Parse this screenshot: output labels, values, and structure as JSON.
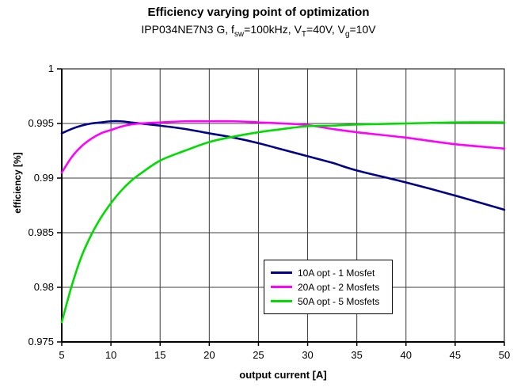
{
  "header": {
    "title": "Efficiency varying point of optimization",
    "subtitle_parts": {
      "p1": "IPP034NE7N3 G, f",
      "s1": "sw",
      "p2": "=100kHz, V",
      "s2": "T",
      "p3": "=40V, V",
      "s3": "g",
      "p4": "=10V"
    }
  },
  "chart_data": {
    "type": "line",
    "title": "Efficiency varying point of optimization",
    "subtitle": "IPP034NE7N3 G, fsw=100kHz, VT=40V, Vg=10V",
    "xlabel": "output current [A]",
    "ylabel": "efficiency [%]",
    "xlim": [
      5,
      50
    ],
    "ylim": [
      0.975,
      1.0
    ],
    "grid": true,
    "legend_position": "lower-center-right",
    "x_ticks": [
      {
        "v": 5,
        "label": "5"
      },
      {
        "v": 10,
        "label": "10"
      },
      {
        "v": 15,
        "label": "15"
      },
      {
        "v": 20,
        "label": "20"
      },
      {
        "v": 25,
        "label": "25"
      },
      {
        "v": 30,
        "label": "30"
      },
      {
        "v": 35,
        "label": "35"
      },
      {
        "v": 40,
        "label": "40"
      },
      {
        "v": 45,
        "label": "45"
      },
      {
        "v": 50,
        "label": "50"
      }
    ],
    "y_ticks": [
      {
        "v": 1.0,
        "label": "1"
      },
      {
        "v": 0.995,
        "label": "0.995"
      },
      {
        "v": 0.99,
        "label": "0.99"
      },
      {
        "v": 0.985,
        "label": "0.985"
      },
      {
        "v": 0.98,
        "label": "0.98"
      },
      {
        "v": 0.975,
        "label": "0.975"
      }
    ],
    "x": [
      5,
      6,
      7,
      8,
      9,
      10,
      11,
      12,
      13,
      15,
      17.5,
      20,
      22.5,
      25,
      27.5,
      30,
      32.5,
      35,
      40,
      45,
      50
    ],
    "series": [
      {
        "name": "10A opt - 1 Mosfet",
        "color": "#00008B",
        "values": [
          0.9941,
          0.9945,
          0.9948,
          0.995,
          0.9951,
          0.9952,
          0.9952,
          0.9951,
          0.995,
          0.9948,
          0.9945,
          0.9941,
          0.9937,
          0.9932,
          0.9926,
          0.992,
          0.9914,
          0.9907,
          0.9896,
          0.9884,
          0.9871
        ]
      },
      {
        "name": "20A opt - 2 Mosfets",
        "color": "#FF00FF",
        "values": [
          0.9905,
          0.9919,
          0.9929,
          0.9936,
          0.9941,
          0.9944,
          0.9947,
          0.9949,
          0.995,
          0.9951,
          0.9952,
          0.9952,
          0.9952,
          0.9951,
          0.995,
          0.99485,
          0.9945,
          0.9942,
          0.9937,
          0.9931,
          0.9927
        ]
      },
      {
        "name": "50A opt - 5 Mosfets",
        "color": "#00DB00",
        "values": [
          0.9768,
          0.9801,
          0.9828,
          0.9848,
          0.9864,
          0.9877,
          0.9888,
          0.9897,
          0.9904,
          0.9916,
          0.9925,
          0.9933,
          0.9938,
          0.9942,
          0.9945,
          0.99475,
          0.9948,
          0.9949,
          0.995,
          0.9951,
          0.9951
        ]
      }
    ]
  }
}
